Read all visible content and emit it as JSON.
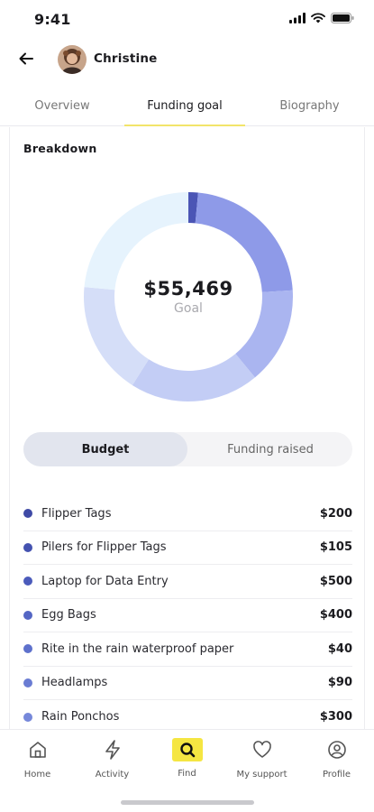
{
  "status_bar": {
    "time": "9:41"
  },
  "header": {
    "name": "Christine"
  },
  "tabs": [
    {
      "label": "Overview"
    },
    {
      "label": "Funding goal"
    },
    {
      "label": "Biography"
    }
  ],
  "breakdown": {
    "title": "Breakdown",
    "goal_amount": "$55,469",
    "goal_label": "Goal"
  },
  "segment": {
    "budget": "Budget",
    "funding_raised": "Funding raised"
  },
  "items": [
    {
      "label": "Flipper Tags",
      "amount": "$200",
      "color": "#3f4aa6"
    },
    {
      "label": "Pilers for Flipper Tags",
      "amount": "$105",
      "color": "#4452b0"
    },
    {
      "label": "Laptop for Data Entry",
      "amount": "$500",
      "color": "#4b5bbb"
    },
    {
      "label": "Egg Bags",
      "amount": "$400",
      "color": "#5466c4"
    },
    {
      "label": "Rite in the rain waterproof paper",
      "amount": "$40",
      "color": "#5e71cc"
    },
    {
      "label": "Headlamps",
      "amount": "$90",
      "color": "#6a7cd3"
    },
    {
      "label": "Rain Ponchos",
      "amount": "$300",
      "color": "#7688da"
    }
  ],
  "chart_data": {
    "type": "pie",
    "title": "",
    "center_label": "$55,469",
    "slices": [
      {
        "value": 6,
        "color": "#4b55b5"
      },
      {
        "value": 90,
        "color": "#8e9ae8"
      },
      {
        "value": 60,
        "color": "#aab5f0"
      },
      {
        "value": 80,
        "color": "#c3cdf5"
      },
      {
        "value": 70,
        "color": "#d5def8"
      },
      {
        "value": 94,
        "color": "#e6f3fd"
      }
    ]
  },
  "nav": [
    {
      "label": "Home",
      "icon": "home-icon"
    },
    {
      "label": "Activity",
      "icon": "bolt-icon"
    },
    {
      "label": "Find",
      "icon": "find-icon"
    },
    {
      "label": "My support",
      "icon": "heart-icon"
    },
    {
      "label": "Profile",
      "icon": "profile-icon"
    }
  ]
}
